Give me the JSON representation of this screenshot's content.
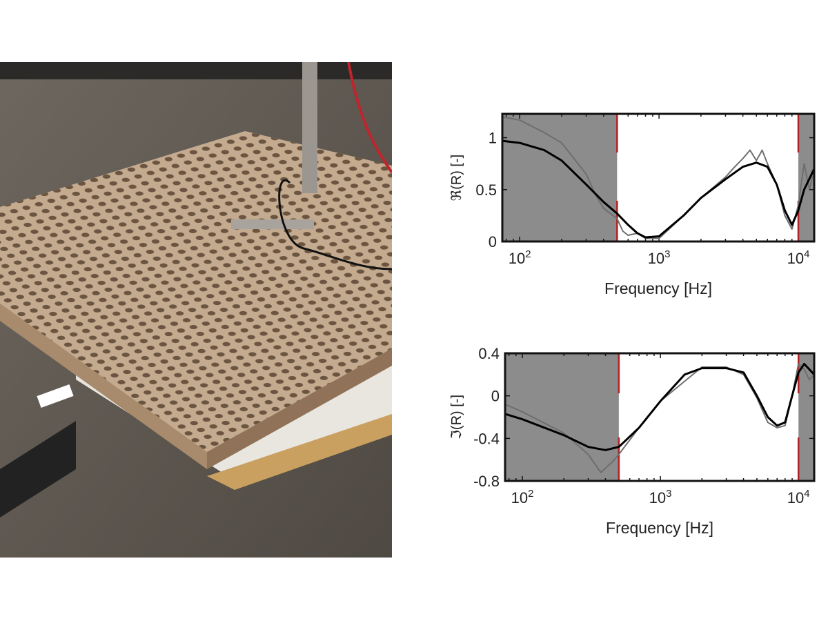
{
  "photo": {
    "description_hidden": ""
  },
  "chart_data": [
    {
      "type": "line",
      "xlabel": "Frequency [Hz]",
      "ylabel": "ℜ(R) [-]",
      "xscale": "log",
      "xlim": [
        75,
        13000
      ],
      "ylim": [
        0,
        1.23
      ],
      "xticks": [
        {
          "base": "10",
          "exp": "2",
          "value": 100
        },
        {
          "base": "10",
          "exp": "3",
          "value": 1000
        },
        {
          "base": "10",
          "exp": "4",
          "value": 10000
        }
      ],
      "yticks": [
        {
          "label": "0",
          "value": 0
        },
        {
          "label": "0.5",
          "value": 0.5
        },
        {
          "label": "1",
          "value": 1
        }
      ],
      "shaded_ranges": [
        [
          75,
          500
        ],
        [
          10000,
          13000
        ]
      ],
      "cutoff_lines": [
        500,
        10000
      ],
      "colors": {
        "shade": "#8c8c8c",
        "fit": "#000000",
        "measured": "#6e6e6e",
        "cutoff": "#b22222"
      },
      "series": [
        {
          "style": "measured",
          "x": [
            75,
            100,
            150,
            200,
            300,
            350,
            400,
            500,
            550,
            600,
            700,
            800,
            1000,
            1500,
            2000,
            3000,
            3500,
            4000,
            4500,
            5000,
            5500,
            6000,
            7000,
            8000,
            9000,
            10000,
            11000,
            12000,
            13000
          ],
          "y": [
            1.2,
            1.17,
            1.05,
            0.95,
            0.65,
            0.45,
            0.32,
            0.22,
            0.1,
            0.06,
            0.08,
            0.03,
            0.03,
            0.25,
            0.42,
            0.62,
            0.72,
            0.8,
            0.88,
            0.78,
            0.88,
            0.75,
            0.55,
            0.25,
            0.12,
            0.35,
            0.75,
            0.5,
            0.7
          ]
        },
        {
          "style": "fit",
          "x": [
            75,
            100,
            150,
            200,
            300,
            400,
            500,
            600,
            700,
            800,
            1000,
            1500,
            2000,
            3000,
            4000,
            5000,
            6000,
            7000,
            8000,
            9000,
            10000,
            11000,
            13000
          ],
          "y": [
            0.97,
            0.95,
            0.88,
            0.78,
            0.55,
            0.38,
            0.27,
            0.16,
            0.08,
            0.04,
            0.05,
            0.25,
            0.42,
            0.6,
            0.72,
            0.76,
            0.72,
            0.55,
            0.3,
            0.16,
            0.3,
            0.5,
            0.7
          ]
        }
      ]
    },
    {
      "type": "line",
      "xlabel": "Frequency [Hz]",
      "ylabel": "ℑ(R) [-]",
      "xscale": "log",
      "xlim": [
        75,
        13000
      ],
      "ylim": [
        -0.8,
        0.4
      ],
      "xticks": [
        {
          "base": "10",
          "exp": "2",
          "value": 100
        },
        {
          "base": "10",
          "exp": "3",
          "value": 1000
        },
        {
          "base": "10",
          "exp": "4",
          "value": 10000
        }
      ],
      "yticks": [
        {
          "label": "-0.8",
          "value": -0.8
        },
        {
          "label": "-0.4",
          "value": -0.4
        },
        {
          "label": "0",
          "value": 0
        },
        {
          "label": "0.4",
          "value": 0.4
        }
      ],
      "shaded_ranges": [
        [
          75,
          500
        ],
        [
          10000,
          13000
        ]
      ],
      "cutoff_lines": [
        500,
        10000
      ],
      "colors": {
        "shade": "#8c8c8c",
        "fit": "#000000",
        "measured": "#6e6e6e",
        "cutoff": "#b22222"
      },
      "series": [
        {
          "style": "measured",
          "x": [
            75,
            100,
            200,
            300,
            370,
            450,
            500,
            700,
            1000,
            2000,
            3000,
            4000,
            5000,
            6000,
            7000,
            8000,
            9000,
            10000,
            11000,
            12000,
            13000
          ],
          "y": [
            -0.08,
            -0.15,
            -0.35,
            -0.55,
            -0.72,
            -0.62,
            -0.55,
            -0.3,
            -0.05,
            0.27,
            0.27,
            0.2,
            -0.02,
            -0.25,
            -0.3,
            -0.28,
            0.0,
            0.3,
            0.25,
            0.15,
            0.2
          ]
        },
        {
          "style": "fit",
          "x": [
            75,
            100,
            200,
            300,
            400,
            500,
            700,
            1000,
            1500,
            2000,
            3000,
            4000,
            5000,
            6000,
            7000,
            8000,
            9000,
            10000,
            11000,
            13000
          ],
          "y": [
            -0.17,
            -0.22,
            -0.37,
            -0.48,
            -0.51,
            -0.48,
            -0.3,
            -0.05,
            0.2,
            0.26,
            0.26,
            0.22,
            0.0,
            -0.2,
            -0.28,
            -0.25,
            0.0,
            0.22,
            0.3,
            0.2
          ]
        }
      ]
    }
  ]
}
